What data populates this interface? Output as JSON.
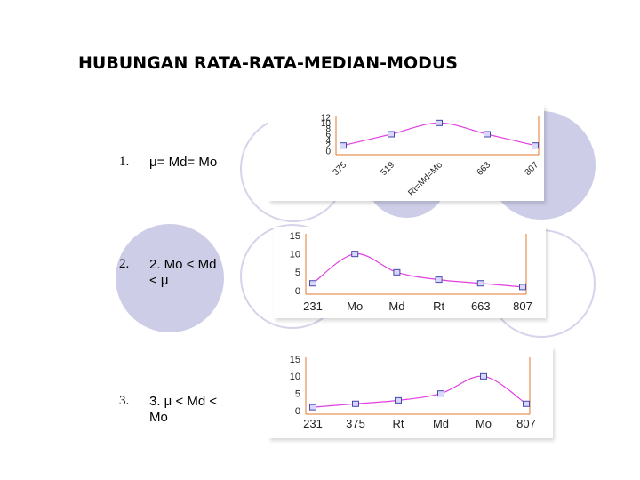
{
  "title": "HUBUNGAN RATA-RATA-MEDIAN-MODUS",
  "items": [
    {
      "number": "1.",
      "text_line1": "μ= Md= Mo",
      "text_line2": ""
    },
    {
      "number": "2.",
      "text_line1": "2.  Mo < Md",
      "text_line2": "< μ"
    },
    {
      "number": "3.",
      "text_line1": "3.   μ < Md <",
      "text_line2": "Mo"
    }
  ],
  "colors": {
    "line": "#e040e0",
    "marker_fill": "#d8d8ff",
    "marker_stroke": "#4848a8",
    "axis_orange": "#e07830",
    "deco_fill": "#cdcde8"
  },
  "chart_data": [
    {
      "type": "line",
      "categories": [
        "375",
        "519",
        "Rt=Md=Mo",
        "663",
        "807"
      ],
      "values": [
        2,
        6,
        10,
        6,
        2
      ],
      "yticks": [
        "12",
        "10",
        "8",
        "6",
        "4",
        "2",
        "0"
      ],
      "ylim": [
        0,
        12
      ],
      "grid": false,
      "xlabel_rotation": -45
    },
    {
      "type": "line",
      "categories": [
        "231",
        "Mo",
        "Md",
        "Rt",
        "663",
        "807"
      ],
      "values": [
        2,
        10,
        5,
        3,
        2,
        1
      ],
      "yticks": [
        "15",
        "10",
        "5",
        "0"
      ],
      "ylim": [
        0,
        15
      ],
      "grid": false
    },
    {
      "type": "line",
      "categories": [
        "231",
        "375",
        "Rt",
        "Md",
        "Mo",
        "807"
      ],
      "values": [
        1,
        2,
        3,
        5,
        10,
        2
      ],
      "yticks": [
        "15",
        "10",
        "5",
        "0"
      ],
      "ylim": [
        0,
        15
      ],
      "grid": false
    }
  ]
}
